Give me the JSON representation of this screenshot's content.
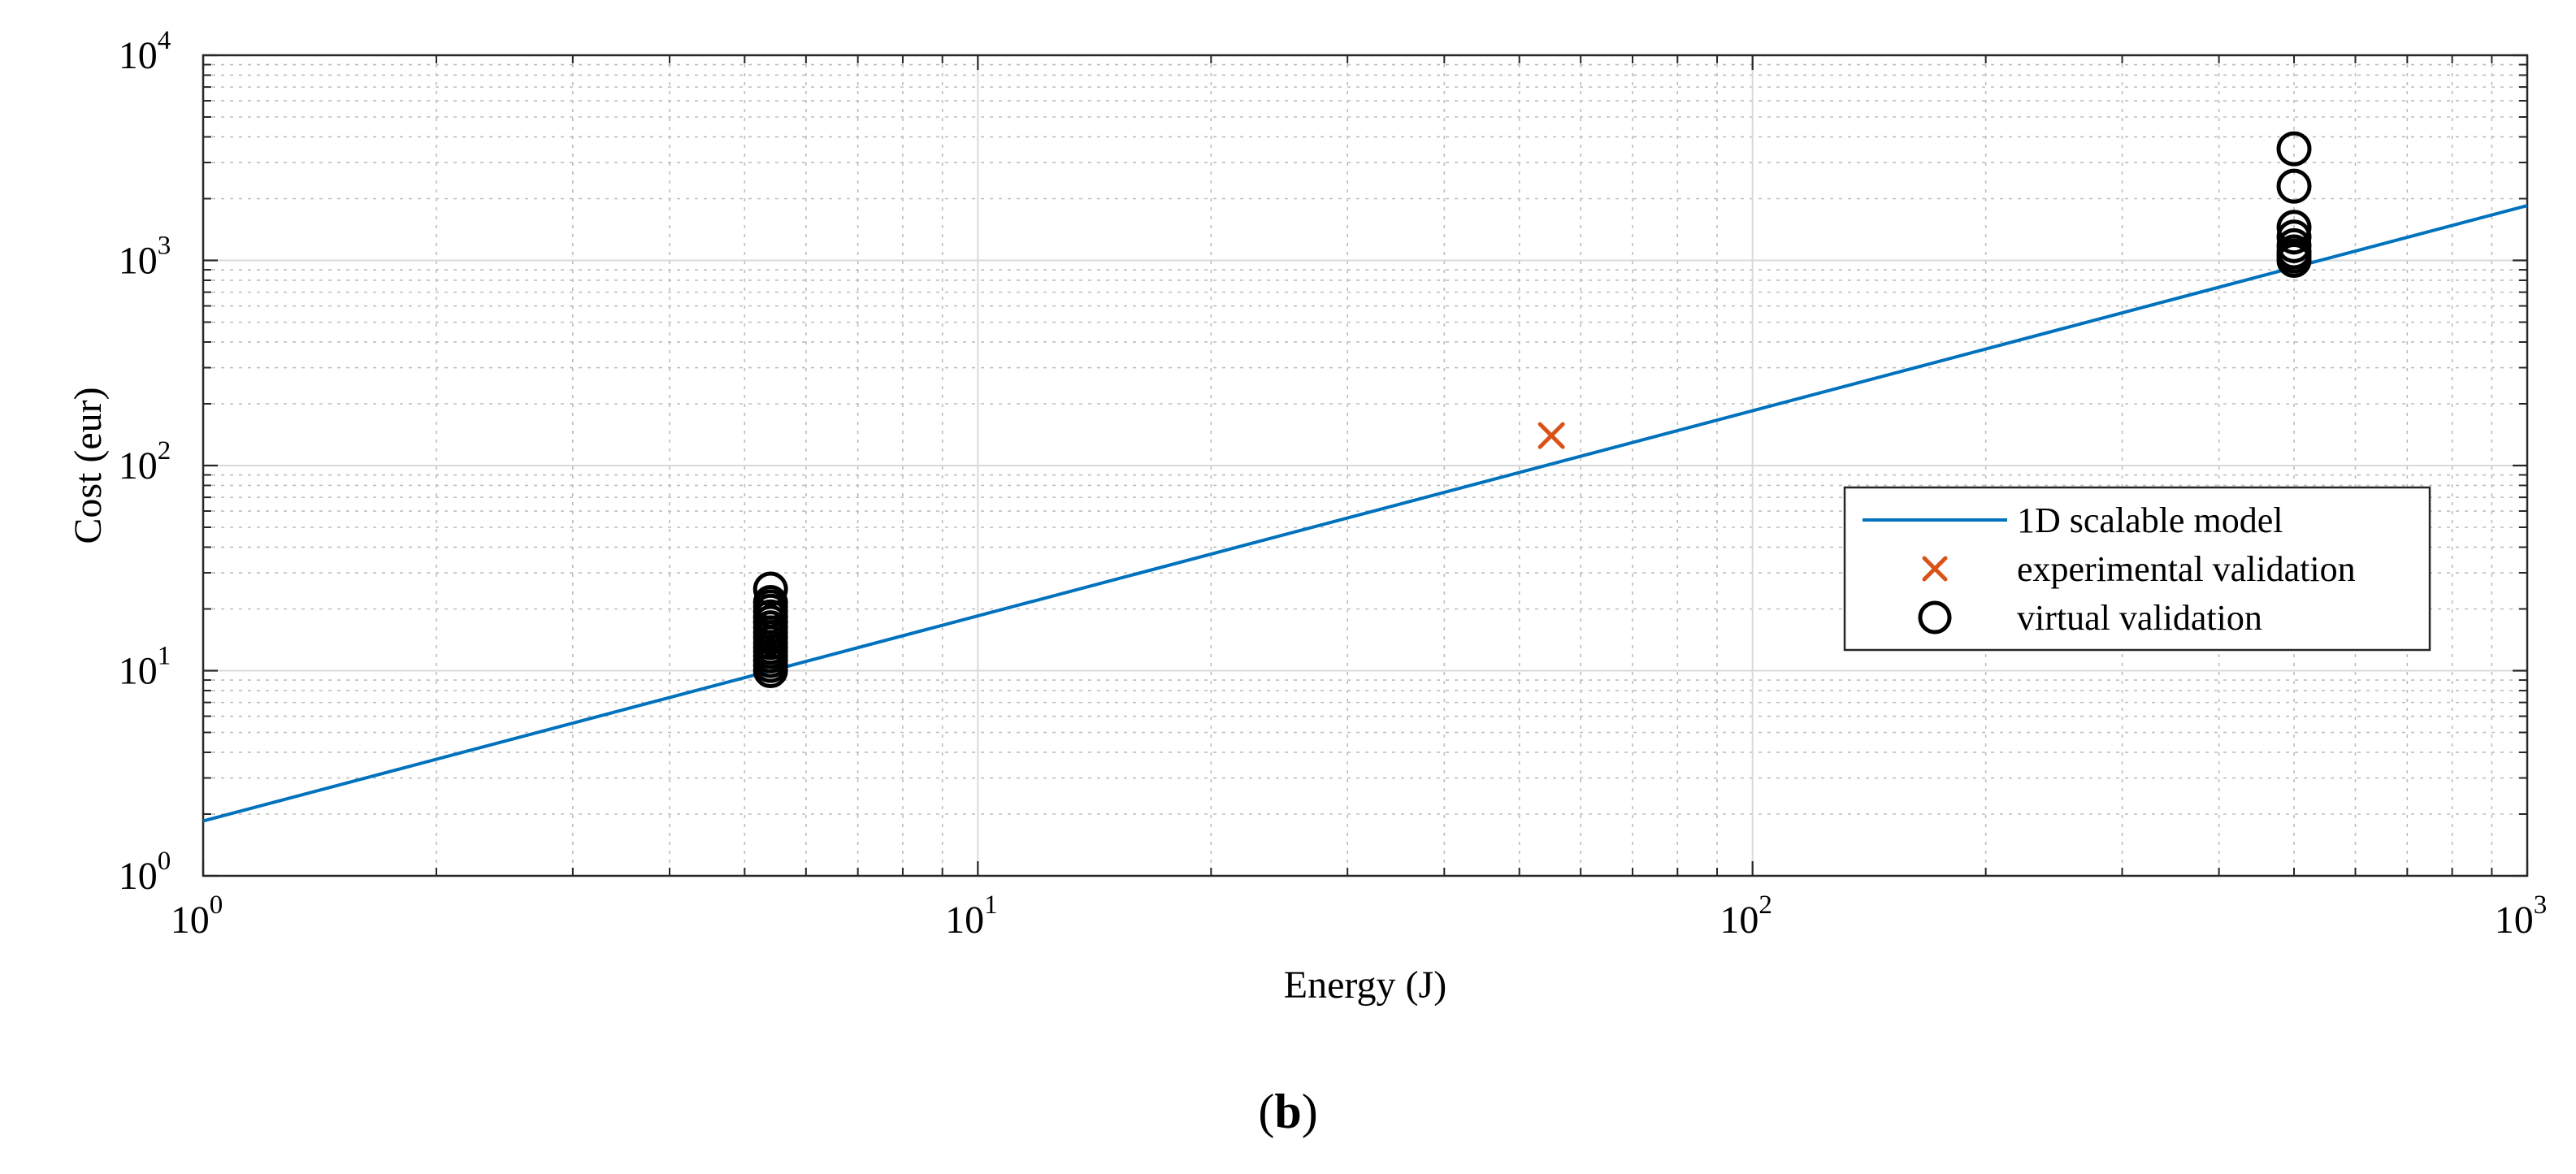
{
  "chart_data": {
    "type": "scatter",
    "title": "",
    "xlabel": "Energy (J)",
    "ylabel": "Cost (eur)",
    "xscale": "log",
    "yscale": "log",
    "xlim": [
      1,
      1000
    ],
    "ylim": [
      1,
      10000
    ],
    "grid": true,
    "minor_grid": true,
    "legend_position": "right",
    "x_ticks": [
      {
        "base": "10",
        "exp": "0",
        "value": 1
      },
      {
        "base": "10",
        "exp": "1",
        "value": 10
      },
      {
        "base": "10",
        "exp": "2",
        "value": 100
      },
      {
        "base": "10",
        "exp": "3",
        "value": 1000
      }
    ],
    "y_ticks": [
      {
        "base": "10",
        "exp": "0",
        "value": 1
      },
      {
        "base": "10",
        "exp": "1",
        "value": 10
      },
      {
        "base": "10",
        "exp": "2",
        "value": 100
      },
      {
        "base": "10",
        "exp": "3",
        "value": 1000
      },
      {
        "base": "10",
        "exp": "4",
        "value": 10000
      }
    ],
    "series": [
      {
        "name": "1D scalable model",
        "kind": "line",
        "color": "#0072BD",
        "x": [
          1,
          1000
        ],
        "y": [
          1.85,
          1850
        ]
      },
      {
        "name": "experimental validation",
        "kind": "marker-x",
        "color": "#D95319",
        "x": [
          55
        ],
        "y": [
          140
        ]
      },
      {
        "name": "virtual validation",
        "kind": "marker-circle",
        "color": "#000000",
        "x": [
          5.4,
          5.4,
          5.4,
          5.4,
          5.4,
          5.4,
          5.4,
          5.4,
          5.4,
          5.4,
          5.4,
          5.4,
          5.4,
          5.4,
          5.4,
          5.4,
          500,
          500,
          500,
          500,
          500,
          500,
          500,
          500
        ],
        "y": [
          10,
          10.6,
          11.2,
          11.8,
          12.4,
          13,
          13.7,
          14.5,
          15.3,
          16.2,
          17.2,
          18.3,
          19.5,
          20.5,
          21.5,
          25,
          1000,
          1050,
          1100,
          1180,
          1300,
          1450,
          2300,
          3500
        ]
      }
    ]
  },
  "panel_label": {
    "open": "(",
    "letter": "b",
    "close": ")"
  }
}
